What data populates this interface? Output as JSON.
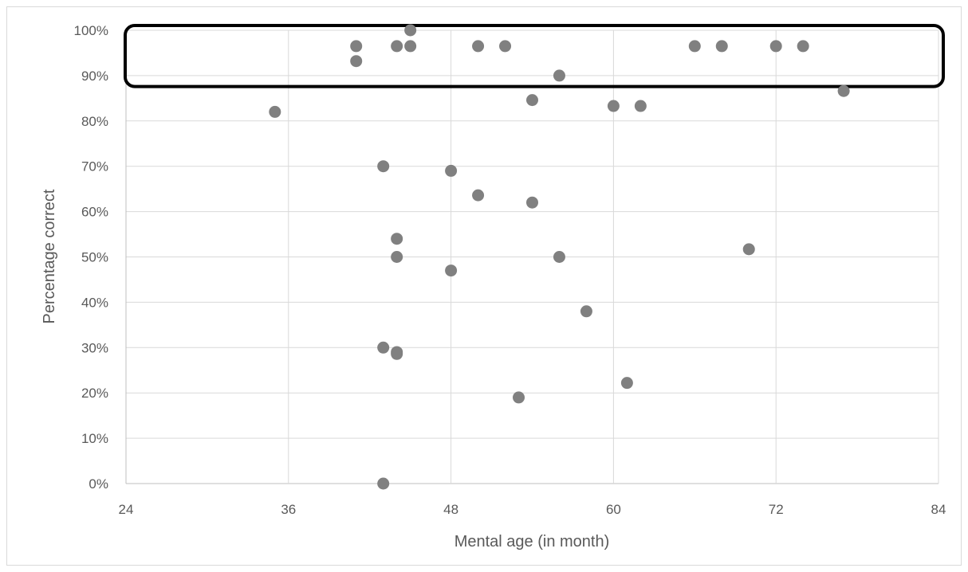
{
  "chart_data": {
    "type": "scatter",
    "xlabel": "Mental age (in month)",
    "ylabel": "Percentage correct",
    "xlim": [
      24,
      84
    ],
    "ylim": [
      0,
      1
    ],
    "x_ticks": [
      24,
      36,
      48,
      60,
      72,
      84
    ],
    "y_ticks": [
      0,
      0.1,
      0.2,
      0.3,
      0.4,
      0.5,
      0.6,
      0.7,
      0.8,
      0.9,
      1.0
    ],
    "x_tick_labels": [
      "24",
      "36",
      "48",
      "60",
      "72",
      "84"
    ],
    "y_tick_labels": [
      "0%",
      "10%",
      "20%",
      "30%",
      "40%",
      "50%",
      "60%",
      "70%",
      "80%",
      "90%",
      "100%"
    ],
    "grid": true,
    "marker_color": "#808080",
    "highlight_box": {
      "y_range": [
        0.89,
        1.0
      ],
      "description": "highlighted region"
    },
    "points": [
      {
        "x": 35,
        "y": 0.82
      },
      {
        "x": 41,
        "y": 0.965
      },
      {
        "x": 41,
        "y": 0.932
      },
      {
        "x": 43,
        "y": 0.7
      },
      {
        "x": 43,
        "y": 0.3
      },
      {
        "x": 43,
        "y": 0.0
      },
      {
        "x": 44,
        "y": 0.965
      },
      {
        "x": 44,
        "y": 0.54
      },
      {
        "x": 44,
        "y": 0.5
      },
      {
        "x": 44,
        "y": 0.29
      },
      {
        "x": 44,
        "y": 0.286
      },
      {
        "x": 45,
        "y": 1.0
      },
      {
        "x": 45,
        "y": 0.965
      },
      {
        "x": 48,
        "y": 0.69
      },
      {
        "x": 48,
        "y": 0.47
      },
      {
        "x": 50,
        "y": 0.965
      },
      {
        "x": 50,
        "y": 0.636
      },
      {
        "x": 52,
        "y": 0.965
      },
      {
        "x": 53,
        "y": 0.19
      },
      {
        "x": 54,
        "y": 0.846
      },
      {
        "x": 54,
        "y": 0.62
      },
      {
        "x": 56,
        "y": 0.9
      },
      {
        "x": 56,
        "y": 0.5
      },
      {
        "x": 58,
        "y": 0.38
      },
      {
        "x": 60,
        "y": 0.833
      },
      {
        "x": 61,
        "y": 0.222
      },
      {
        "x": 62,
        "y": 0.833
      },
      {
        "x": 66,
        "y": 0.965
      },
      {
        "x": 68,
        "y": 0.965
      },
      {
        "x": 70,
        "y": 0.517
      },
      {
        "x": 72,
        "y": 0.965
      },
      {
        "x": 74,
        "y": 0.965
      },
      {
        "x": 77,
        "y": 0.866
      }
    ]
  }
}
